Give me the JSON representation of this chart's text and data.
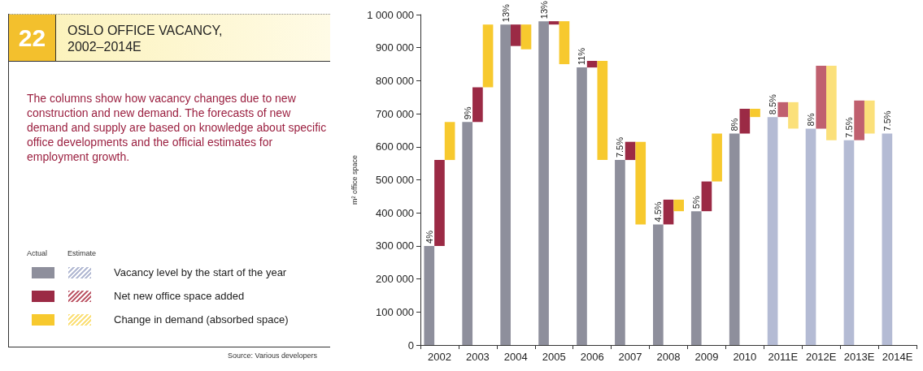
{
  "chart_data": {
    "type": "bar",
    "title": "OSLO OFFICE VACANCY, 2002–2014E",
    "subtitle": "The columns show how vacancy changes due to new construction and new demand. The forecasts of new demand and supply are based on knowledge about specific office developments and the official estimates for employment growth.",
    "ylabel": "m² office space",
    "annotations": [
      "22",
      "Actual",
      "Estimate",
      "Source: Various developers",
      {
        "text": "4%",
        "x": "2002",
        "y": 300000
      },
      {
        "text": "9%",
        "x": "2003",
        "y": 675000
      },
      {
        "text": "13%",
        "x": "2004",
        "y": 970000
      },
      {
        "text": "13%",
        "x": "2005",
        "y": 980000
      },
      {
        "text": "11%",
        "x": "2006",
        "y": 840000
      },
      {
        "text": "7.5%",
        "x": "2007",
        "y": 560000
      },
      {
        "text": "4.5%",
        "x": "2008",
        "y": 365000
      },
      {
        "text": "5%",
        "x": "2009",
        "y": 405000
      },
      {
        "text": "8%",
        "x": "2010",
        "y": 640000
      },
      {
        "text": "8.5%",
        "x": "2011E",
        "y": 690000
      },
      {
        "text": "8%",
        "x": "2012E",
        "y": 655000
      },
      {
        "text": "7.5%",
        "x": "2013E",
        "y": 620000
      },
      "7.5%"
    ],
    "categories": [
      "2002",
      "2003",
      "2004",
      "2005",
      "2006",
      "2007",
      "2008",
      "2009",
      "2010",
      "2011E",
      "2012E",
      "2013E",
      "2014E"
    ],
    "series": [
      {
        "name": "Vacancy level by the start of the year",
        "color": "#8e8f9c",
        "values": [
          300000,
          675000,
          970000,
          980000,
          840000,
          560000,
          365000,
          405000,
          640000,
          690000,
          655000,
          620000,
          640000
        ],
        "colors": [
          "#8e8f9c",
          "#8e8f9c",
          "#8e8f9c",
          "#8e8f9c",
          "#8e8f9c",
          "#8e8f9c",
          "#8e8f9c",
          "#8e8f9c",
          "#8e8f9c",
          "#b4bbd4",
          "#b4bbd4",
          "#b4bbd4",
          "#b4bbd4"
        ]
      },
      {
        "name": "Net new office space added",
        "color": "#9b2a45",
        "base": [
          300000,
          675000,
          905000,
          970000,
          840000,
          560000,
          365000,
          405000,
          640000,
          690000,
          655000,
          620000,
          null
        ],
        "values": [
          260000,
          105000,
          65000,
          10000,
          20000,
          55000,
          75000,
          90000,
          75000,
          45000,
          190000,
          120000,
          null
        ],
        "colors": [
          "#9b2a45",
          "#9b2a45",
          "#9b2a45",
          "#9b2a45",
          "#9b2a45",
          "#9b2a45",
          "#9b2a45",
          "#9b2a45",
          "#9b2a45",
          "#c0606f",
          "#c0606f",
          "#c0606f",
          "#c0606f"
        ]
      },
      {
        "name": "Change in demand (absorbed space)",
        "color": "#f7c92e",
        "base": [
          560000,
          780000,
          895000,
          850000,
          560000,
          365000,
          405000,
          495000,
          690000,
          655000,
          620000,
          640000,
          null
        ],
        "values": [
          115000,
          190000,
          75000,
          130000,
          300000,
          250000,
          35000,
          145000,
          25000,
          80000,
          225000,
          100000,
          null
        ],
        "colors": [
          "#f7c92e",
          "#f7c92e",
          "#f7c92e",
          "#f7c92e",
          "#f7c92e",
          "#f7c92e",
          "#f7c92e",
          "#f7c92e",
          "#f7c92e",
          "#fbe07a",
          "#fbe07a",
          "#fbe07a",
          "#fbe07a"
        ]
      }
    ],
    "ylim": [
      0,
      1000000
    ],
    "yticks": [
      0,
      {
        "value": 100000,
        "label": "100 000"
      },
      {
        "value": 200000,
        "label": "200 000"
      },
      {
        "value": 300000,
        "label": "300 000"
      },
      {
        "value": 400000,
        "label": "400 000"
      },
      {
        "value": 500000,
        "label": "500 000"
      },
      {
        "value": 600000,
        "label": "600 000"
      },
      {
        "value": 700000,
        "label": "700 000"
      },
      {
        "value": 800000,
        "label": "800 000"
      },
      {
        "value": 900000,
        "label": "900 000"
      },
      {
        "value": 1000000,
        "label": "1 000 000"
      }
    ],
    "grid": false,
    "legend": "left"
  }
}
